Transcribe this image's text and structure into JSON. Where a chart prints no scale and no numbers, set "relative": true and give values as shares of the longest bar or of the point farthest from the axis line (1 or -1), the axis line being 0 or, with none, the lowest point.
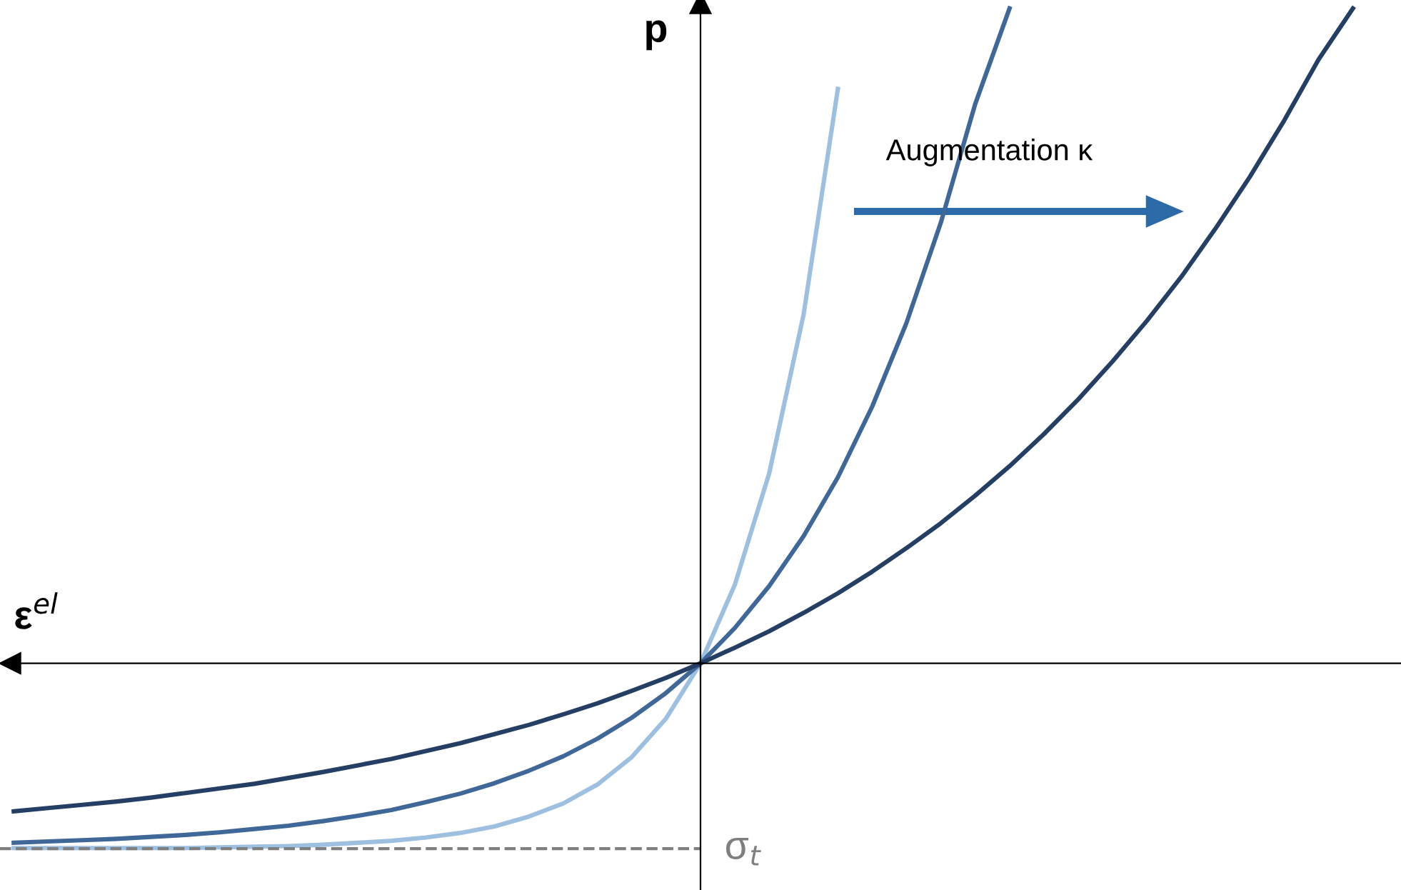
{
  "chart_data": {
    "type": "line",
    "relative": true,
    "xlabel": "ε$^{el}$",
    "ylabel": "p",
    "categories": [
      null,
      null,
      null,
      null,
      null,
      null,
      null,
      null,
      null,
      null,
      null,
      null,
      null,
      null,
      null,
      null,
      null,
      null,
      null,
      null,
      null,
      null,
      null,
      null,
      null,
      null,
      null,
      null,
      null,
      null,
      null,
      null,
      null,
      null,
      null,
      null,
      null,
      null,
      null,
      null,
      null
    ],
    "series": [
      {
        "color": "#9dbfe0",
        "values": [
          -0.282,
          -0.282,
          -0.282,
          -0.282,
          -0.282,
          -0.282,
          -0.281,
          -0.28,
          -0.279,
          -0.277,
          -0.274,
          -0.271,
          -0.266,
          -0.259,
          -0.249,
          -0.234,
          -0.214,
          -0.185,
          -0.143,
          -0.084,
          0,
          0.12,
          0.29,
          0.532,
          0.877,
          null,
          null,
          null,
          null,
          null,
          null,
          null,
          null,
          null,
          null,
          null,
          null,
          null,
          null,
          null,
          null
        ]
      },
      {
        "color": "#3f6797",
        "values": [
          -0.274,
          -0.272,
          -0.27,
          -0.268,
          -0.265,
          -0.262,
          -0.258,
          -0.253,
          -0.248,
          -0.241,
          -0.233,
          -0.224,
          -0.212,
          -0.199,
          -0.183,
          -0.164,
          -0.142,
          -0.115,
          -0.083,
          -0.045,
          0,
          0.054,
          0.118,
          0.194,
          0.284,
          0.392,
          0.52,
          0.673,
          0.854,
          1.0,
          null,
          null,
          null,
          null,
          null,
          null,
          null,
          null,
          null,
          null,
          null
        ]
      },
      {
        "color": "#243f63",
        "values": [
          -0.226,
          -0.221,
          -0.216,
          -0.211,
          -0.205,
          -0.198,
          -0.191,
          -0.184,
          -0.175,
          -0.166,
          -0.156,
          -0.146,
          -0.134,
          -0.122,
          -0.108,
          -0.094,
          -0.078,
          -0.061,
          -0.042,
          -0.022,
          0,
          0.024,
          0.049,
          0.077,
          0.107,
          0.14,
          0.176,
          0.214,
          0.256,
          0.301,
          0.35,
          0.403,
          0.461,
          0.523,
          0.59,
          0.664,
          0.743,
          0.829,
          0.922,
          1.0,
          null
        ]
      }
    ],
    "ref_lines": [
      {
        "axis": "y",
        "value": -0.283,
        "label": "σ$_{t}$",
        "color": "#7f7f7f",
        "line_style": "dashed"
      }
    ],
    "annotations": [
      "Augmentation κ"
    ],
    "legend": false,
    "marker": "none",
    "line_style": "solid"
  }
}
